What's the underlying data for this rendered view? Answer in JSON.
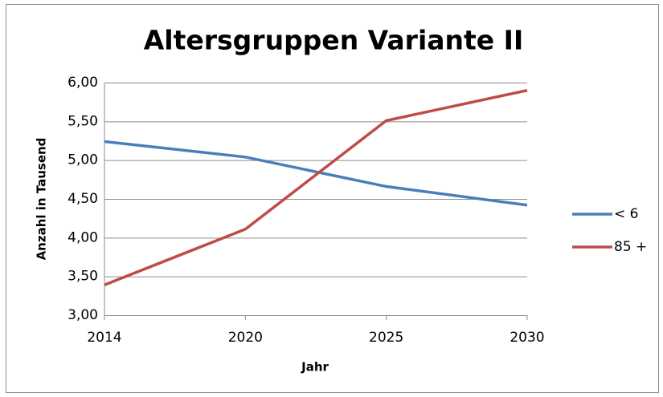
{
  "chart_data": {
    "type": "line",
    "title": "Altersgruppen Variante II",
    "x_label": "Jahr",
    "y_label": "Anzahl in Tausend",
    "categories": [
      "2014",
      "2020",
      "2025",
      "2030"
    ],
    "series": [
      {
        "name": "< 6",
        "color": "#4a7ebb",
        "values": [
          5.24,
          5.04,
          4.66,
          4.42
        ]
      },
      {
        "name": "85 +",
        "color": "#be4b48",
        "values": [
          3.39,
          4.11,
          5.51,
          5.9
        ]
      }
    ],
    "ylim": [
      3,
      6
    ],
    "yticks": [
      {
        "value": 3,
        "label": "3,00"
      },
      {
        "value": 3.5,
        "label": "3,50"
      },
      {
        "value": 4,
        "label": "4,00"
      },
      {
        "value": 4.5,
        "label": "4,50"
      },
      {
        "value": 5,
        "label": "5,00"
      },
      {
        "value": 5.5,
        "label": "5,50"
      },
      {
        "value": 6,
        "label": "6,00"
      }
    ],
    "grid": true,
    "legend": "right"
  }
}
